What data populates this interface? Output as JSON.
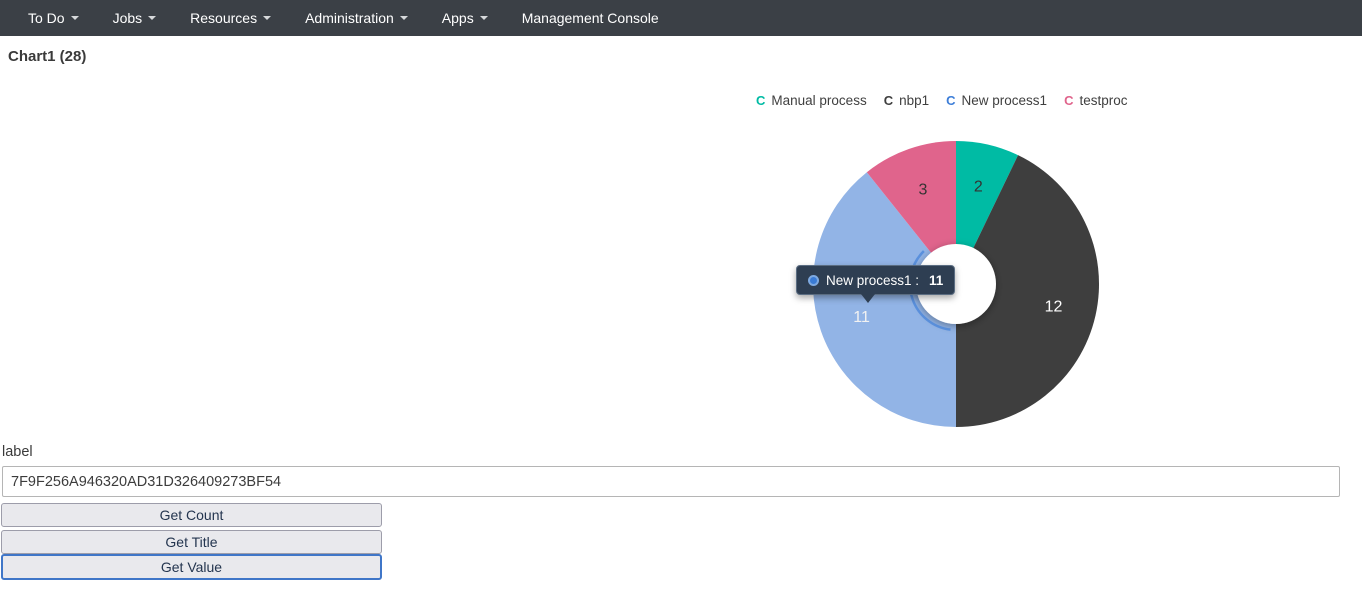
{
  "navbar": {
    "items": [
      {
        "label": "To Do",
        "has_caret": true
      },
      {
        "label": "Jobs",
        "has_caret": true
      },
      {
        "label": "Resources",
        "has_caret": true
      },
      {
        "label": "Administration",
        "has_caret": true
      },
      {
        "label": "Apps",
        "has_caret": true
      },
      {
        "label": "Management Console",
        "has_caret": false
      }
    ]
  },
  "page": {
    "title": "Chart1 (28)"
  },
  "icons": {
    "caret_char": "",
    "legend_marker_char": "C"
  },
  "chart_data": {
    "type": "pie",
    "donut": true,
    "title": "Chart1",
    "total": 28,
    "legend_position": "top",
    "series": [
      {
        "name": "Manual process",
        "value": 2,
        "color": "#00bba4",
        "label_color": "#333333"
      },
      {
        "name": "nbp1",
        "value": 12,
        "color": "#3e3e3e",
        "label_color": "#ffffff"
      },
      {
        "name": "New process1",
        "value": 11,
        "color": "#92b4e6",
        "legend_color": "#3d7ed8",
        "label_color": "#f2f2f2",
        "hovered": true
      },
      {
        "name": "testproc",
        "value": 3,
        "color": "#e0648c",
        "label_color": "#333333"
      }
    ]
  },
  "tooltip": {
    "series": "New process1",
    "text": "New process1 : ",
    "value": "11",
    "background": "#2e3e52",
    "dot_color": "#3a7bd5"
  },
  "form": {
    "label": "label",
    "input_value": "7F9F256A946320AD31D326409273BF54",
    "buttons": [
      "Get Count",
      "Get Title",
      "Get Value"
    ]
  }
}
